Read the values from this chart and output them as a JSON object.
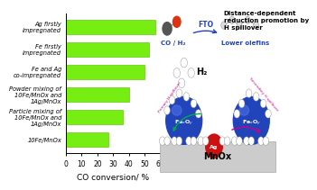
{
  "categories": [
    "10Fe/MnOx",
    "Particle mixing of\n10Fe/MnOx and\n1Ag/MnOx",
    "Powder mixing of\n10Fe/MnOx and\n1Ag/MnOx",
    "Fe and Ag\nco-impregnated",
    "Fe firstly\nimpregnated",
    "Ag firstly\nimpregnated"
  ],
  "values": [
    27,
    36,
    40,
    50,
    53,
    57
  ],
  "bar_color": "#77ee11",
  "bar_edge_color": "#55bb00",
  "background_color": "#ffffff",
  "xlabel": "CO conversion/ %",
  "xlim": [
    0,
    60
  ],
  "xticks": [
    0,
    10,
    20,
    30,
    40,
    50,
    60
  ],
  "label_fontsize": 4.8,
  "tick_fontsize": 5.5,
  "xlabel_fontsize": 6.5,
  "fe_color": "#2244bb",
  "ag_color": "#cc1111",
  "mnox_color": "#cccccc",
  "mnox_text": "MnOx",
  "h2_text": "H₂",
  "diagram_title": "Distance-dependent\nreduction promotion by\nH spillover",
  "co_label": "CO / H₂",
  "fto_label": "FTO",
  "olefins_label": "Lower olefins",
  "primary_label": "Primary H spillover",
  "secondary_label": "Secondary H spillover",
  "label_color": "#2244bb",
  "spillover_color1": "#00aa44",
  "spillover_color2": "#cc0088"
}
